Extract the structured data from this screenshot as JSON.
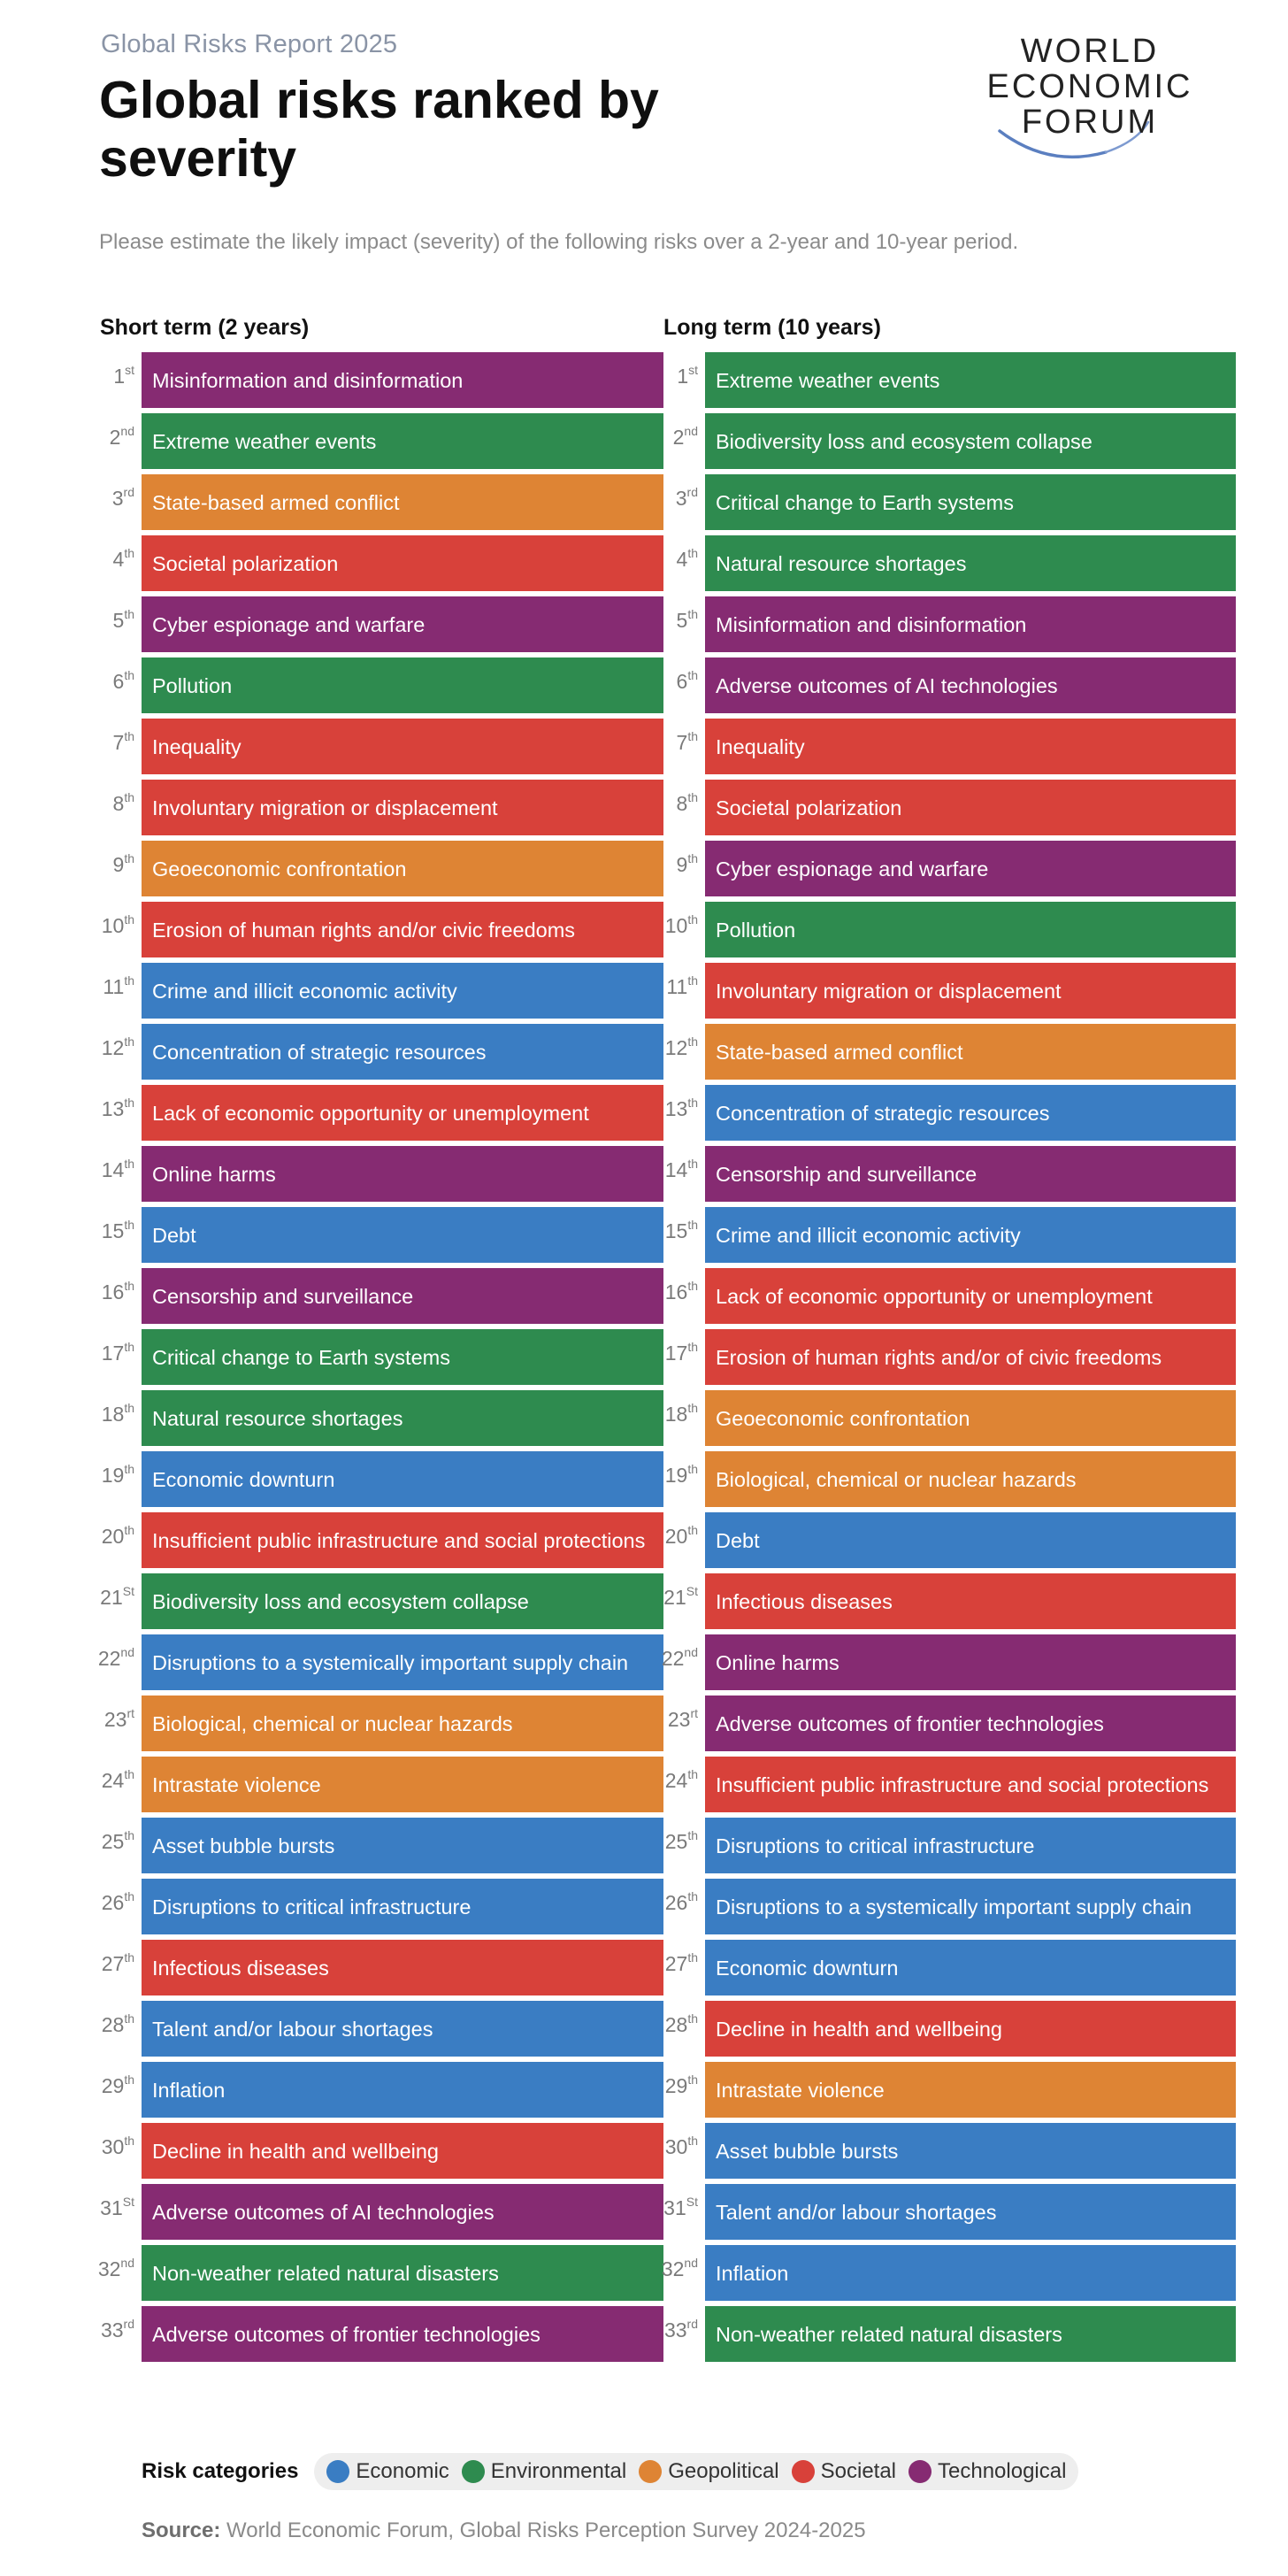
{
  "header": {
    "report_label": "Global Risks Report 2025",
    "title": "Global risks ranked by severity",
    "logo_text": [
      "WORLD",
      "ECONOMIC",
      "FORUM"
    ],
    "prompt": "Please estimate the likely impact (severity) of the following risks over a 2-year and 10-year period."
  },
  "colors": {
    "Economic": "#3a7dc3",
    "Environmental": "#2e8b4f",
    "Geopolitical": "#de8434",
    "Societal": "#d8413a",
    "Technological": "#862b72"
  },
  "chart_data": {
    "type": "table",
    "columns": [
      {
        "title": "Short term (2 years)",
        "items": [
          {
            "rank_num": "1",
            "rank_suffix": "st",
            "label": "Misinformation and disinformation",
            "category": "Technological"
          },
          {
            "rank_num": "2",
            "rank_suffix": "nd",
            "label": "Extreme weather events",
            "category": "Environmental"
          },
          {
            "rank_num": "3",
            "rank_suffix": "rd",
            "label": "State-based armed conflict",
            "category": "Geopolitical"
          },
          {
            "rank_num": "4",
            "rank_suffix": "th",
            "label": "Societal polarization",
            "category": "Societal"
          },
          {
            "rank_num": "5",
            "rank_suffix": "th",
            "label": "Cyber espionage and warfare",
            "category": "Technological"
          },
          {
            "rank_num": "6",
            "rank_suffix": "th",
            "label": "Pollution",
            "category": "Environmental"
          },
          {
            "rank_num": "7",
            "rank_suffix": "th",
            "label": "Inequality",
            "category": "Societal"
          },
          {
            "rank_num": "8",
            "rank_suffix": "th",
            "label": "Involuntary migration or displacement",
            "category": "Societal"
          },
          {
            "rank_num": "9",
            "rank_suffix": "th",
            "label": "Geoeconomic confrontation",
            "category": "Geopolitical"
          },
          {
            "rank_num": "10",
            "rank_suffix": "th",
            "label": "Erosion of human rights and/or civic freedoms",
            "category": "Societal"
          },
          {
            "rank_num": "11",
            "rank_suffix": "th",
            "label": "Crime and illicit economic activity",
            "category": "Economic"
          },
          {
            "rank_num": "12",
            "rank_suffix": "th",
            "label": "Concentration of strategic resources",
            "category": "Economic"
          },
          {
            "rank_num": "13",
            "rank_suffix": "th",
            "label": "Lack of economic opportunity or unemployment",
            "category": "Societal"
          },
          {
            "rank_num": "14",
            "rank_suffix": "th",
            "label": "Online harms",
            "category": "Technological"
          },
          {
            "rank_num": "15",
            "rank_suffix": "th",
            "label": "Debt",
            "category": "Economic"
          },
          {
            "rank_num": "16",
            "rank_suffix": "th",
            "label": "Censorship and surveillance",
            "category": "Technological"
          },
          {
            "rank_num": "17",
            "rank_suffix": "th",
            "label": "Critical change to Earth systems",
            "category": "Environmental"
          },
          {
            "rank_num": "18",
            "rank_suffix": "th",
            "label": "Natural resource shortages",
            "category": "Environmental"
          },
          {
            "rank_num": "19",
            "rank_suffix": "th",
            "label": "Economic downturn",
            "category": "Economic"
          },
          {
            "rank_num": "20",
            "rank_suffix": "th",
            "label": "Insufficient public infrastructure and social protections",
            "category": "Societal"
          },
          {
            "rank_num": "21",
            "rank_suffix": "St",
            "label": "Biodiversity loss and ecosystem collapse",
            "category": "Environmental"
          },
          {
            "rank_num": "22",
            "rank_suffix": "nd",
            "label": "Disruptions to a systemically important supply chain",
            "category": "Economic"
          },
          {
            "rank_num": "23",
            "rank_suffix": "rt",
            "label": "Biological, chemical or nuclear hazards",
            "category": "Geopolitical"
          },
          {
            "rank_num": "24",
            "rank_suffix": "th",
            "label": "Intrastate violence",
            "category": "Geopolitical"
          },
          {
            "rank_num": "25",
            "rank_suffix": "th",
            "label": "Asset bubble bursts",
            "category": "Economic"
          },
          {
            "rank_num": "26",
            "rank_suffix": "th",
            "label": "Disruptions to critical infrastructure",
            "category": "Economic"
          },
          {
            "rank_num": "27",
            "rank_suffix": "th",
            "label": "Infectious diseases",
            "category": "Societal"
          },
          {
            "rank_num": "28",
            "rank_suffix": "th",
            "label": "Talent and/or labour shortages",
            "category": "Economic"
          },
          {
            "rank_num": "29",
            "rank_suffix": "th",
            "label": "Inflation",
            "category": "Economic"
          },
          {
            "rank_num": "30",
            "rank_suffix": "th",
            "label": "Decline in health and wellbeing",
            "category": "Societal"
          },
          {
            "rank_num": "31",
            "rank_suffix": "St",
            "label": "Adverse outcomes of AI technologies",
            "category": "Technological"
          },
          {
            "rank_num": "32",
            "rank_suffix": "nd",
            "label": "Non-weather related natural disasters",
            "category": "Environmental"
          },
          {
            "rank_num": "33",
            "rank_suffix": "rd",
            "label": "Adverse outcomes of frontier technologies",
            "category": "Technological"
          }
        ]
      },
      {
        "title": "Long term (10 years)",
        "items": [
          {
            "rank_num": "1",
            "rank_suffix": "st",
            "label": "Extreme weather events",
            "category": "Environmental"
          },
          {
            "rank_num": "2",
            "rank_suffix": "nd",
            "label": "Biodiversity loss and ecosystem collapse",
            "category": "Environmental"
          },
          {
            "rank_num": "3",
            "rank_suffix": "rd",
            "label": "Critical change to Earth systems",
            "category": "Environmental"
          },
          {
            "rank_num": "4",
            "rank_suffix": "th",
            "label": "Natural resource shortages",
            "category": "Environmental"
          },
          {
            "rank_num": "5",
            "rank_suffix": "th",
            "label": "Misinformation and disinformation",
            "category": "Technological"
          },
          {
            "rank_num": "6",
            "rank_suffix": "th",
            "label": "Adverse outcomes of AI technologies",
            "category": "Technological"
          },
          {
            "rank_num": "7",
            "rank_suffix": "th",
            "label": "Inequality",
            "category": "Societal"
          },
          {
            "rank_num": "8",
            "rank_suffix": "th",
            "label": "Societal polarization",
            "category": "Societal"
          },
          {
            "rank_num": "9",
            "rank_suffix": "th",
            "label": "Cyber espionage and warfare",
            "category": "Technological"
          },
          {
            "rank_num": "10",
            "rank_suffix": "th",
            "label": "Pollution",
            "category": "Environmental"
          },
          {
            "rank_num": "11",
            "rank_suffix": "th",
            "label": "Involuntary migration or displacement",
            "category": "Societal"
          },
          {
            "rank_num": "12",
            "rank_suffix": "th",
            "label": "State-based armed conflict",
            "category": "Geopolitical"
          },
          {
            "rank_num": "13",
            "rank_suffix": "th",
            "label": "Concentration of strategic resources",
            "category": "Economic"
          },
          {
            "rank_num": "14",
            "rank_suffix": "th",
            "label": "Censorship and surveillance",
            "category": "Technological"
          },
          {
            "rank_num": "15",
            "rank_suffix": "th",
            "label": "Crime and illicit economic activity",
            "category": "Economic"
          },
          {
            "rank_num": "16",
            "rank_suffix": "th",
            "label": "Lack of economic opportunity or unemployment",
            "category": "Societal"
          },
          {
            "rank_num": "17",
            "rank_suffix": "th",
            "label": "Erosion of human rights and/or of civic freedoms",
            "category": "Societal"
          },
          {
            "rank_num": "18",
            "rank_suffix": "th",
            "label": "Geoeconomic confrontation",
            "category": "Geopolitical"
          },
          {
            "rank_num": "19",
            "rank_suffix": "th",
            "label": "Biological, chemical or nuclear hazards",
            "category": "Geopolitical"
          },
          {
            "rank_num": "20",
            "rank_suffix": "th",
            "label": "Debt",
            "category": "Economic"
          },
          {
            "rank_num": "21",
            "rank_suffix": "St",
            "label": "Infectious diseases",
            "category": "Societal"
          },
          {
            "rank_num": "22",
            "rank_suffix": "nd",
            "label": "Online harms",
            "category": "Technological"
          },
          {
            "rank_num": "23",
            "rank_suffix": "rt",
            "label": "Adverse outcomes of frontier technologies",
            "category": "Technological"
          },
          {
            "rank_num": "24",
            "rank_suffix": "th",
            "label": "Insufficient public infrastructure and social protections",
            "category": "Societal"
          },
          {
            "rank_num": "25",
            "rank_suffix": "th",
            "label": "Disruptions to critical infrastructure",
            "category": "Economic"
          },
          {
            "rank_num": "26",
            "rank_suffix": "th",
            "label": "Disruptions to a systemically important supply chain",
            "category": "Economic"
          },
          {
            "rank_num": "27",
            "rank_suffix": "th",
            "label": "Economic downturn",
            "category": "Economic"
          },
          {
            "rank_num": "28",
            "rank_suffix": "th",
            "label": "Decline in health and wellbeing",
            "category": "Societal"
          },
          {
            "rank_num": "29",
            "rank_suffix": "th",
            "label": "Intrastate violence",
            "category": "Geopolitical"
          },
          {
            "rank_num": "30",
            "rank_suffix": "th",
            "label": "Asset bubble bursts",
            "category": "Economic"
          },
          {
            "rank_num": "31",
            "rank_suffix": "St",
            "label": "Talent and/or labour shortages",
            "category": "Economic"
          },
          {
            "rank_num": "32",
            "rank_suffix": "nd",
            "label": "Inflation",
            "category": "Economic"
          },
          {
            "rank_num": "33",
            "rank_suffix": "rd",
            "label": "Non-weather related natural disasters",
            "category": "Environmental"
          }
        ]
      }
    ]
  },
  "legend": {
    "title": "Risk categories",
    "items": [
      "Economic",
      "Environmental",
      "Geopolitical",
      "Societal",
      "Technological"
    ]
  },
  "source": {
    "label": "Source:",
    "text": " World Economic Forum, Global Risks Perception Survey 2024-2025"
  }
}
